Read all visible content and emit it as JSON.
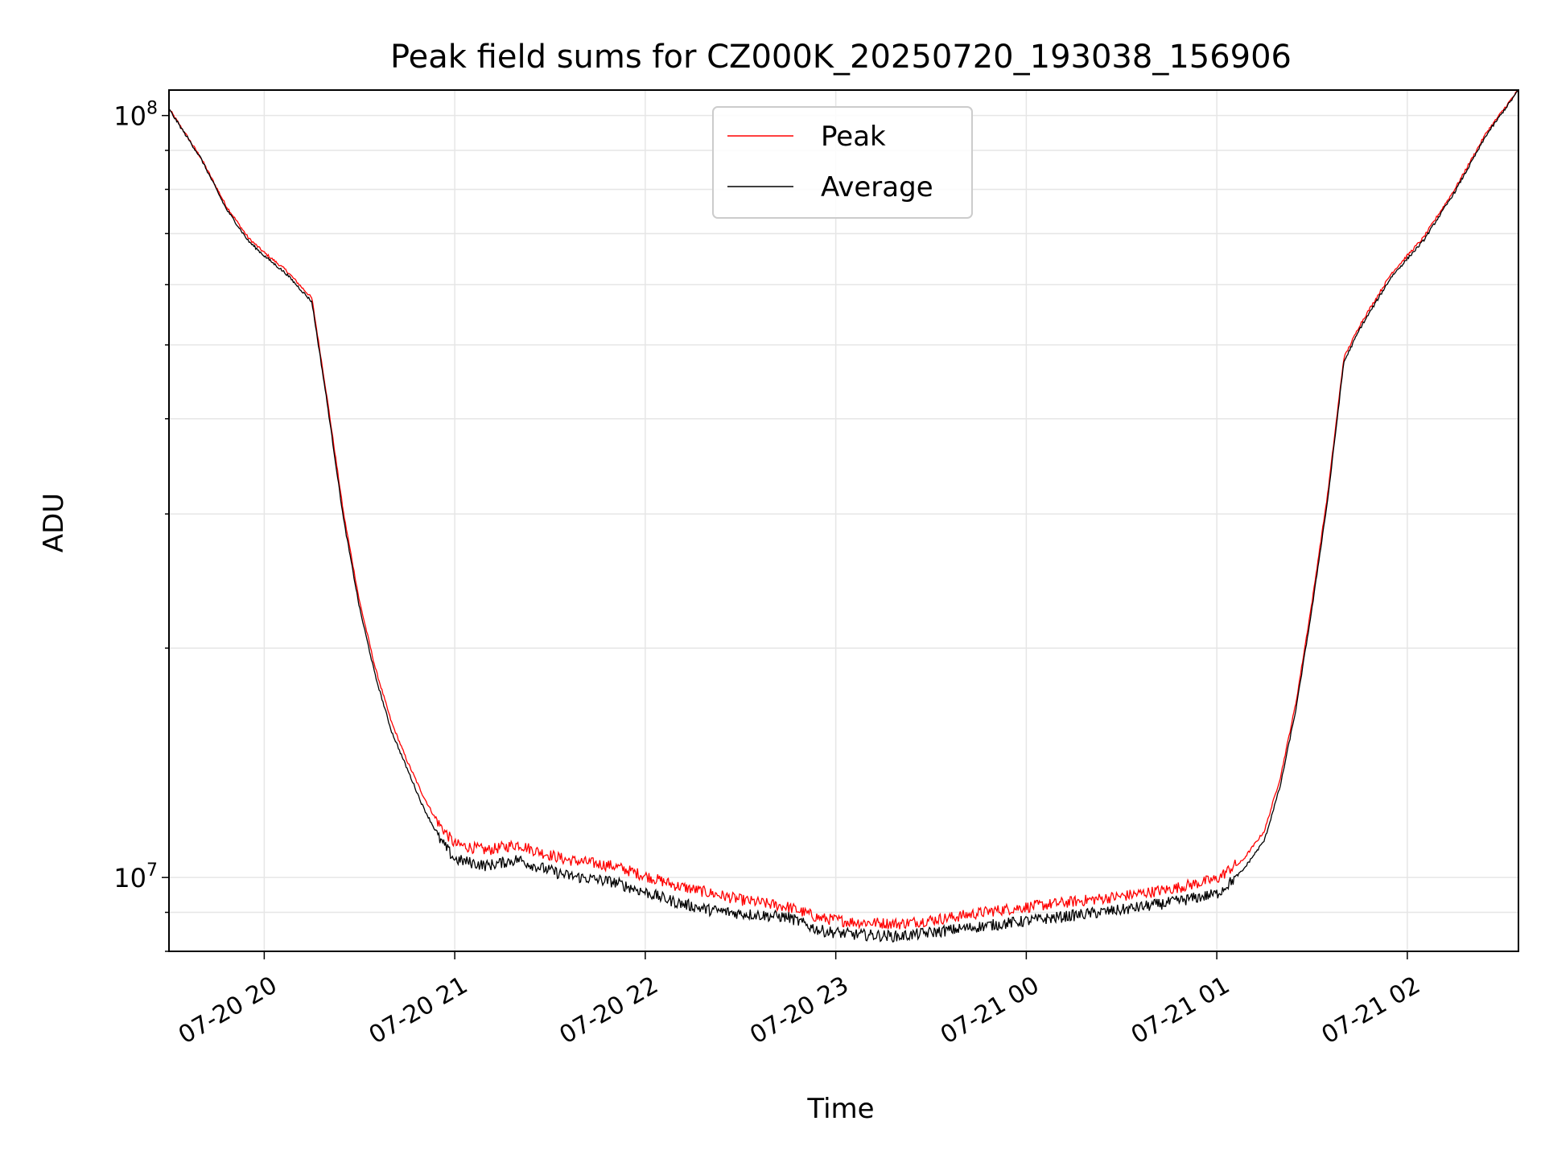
{
  "chart_data": {
    "type": "line",
    "title": "Peak field sums for CZ000K_20250720_193038_156906",
    "xlabel": "Time",
    "ylabel": "ADU",
    "x_axis": "time",
    "x_range": [
      "2025-07-20 19:30",
      "2025-07-21 02:35"
    ],
    "y_scale": "log",
    "ylim": [
      8000000,
      108000000
    ],
    "x_ticks": [
      {
        "t": "2025-07-20 20:00",
        "label": "07-20 20"
      },
      {
        "t": "2025-07-20 21:00",
        "label": "07-20 21"
      },
      {
        "t": "2025-07-20 22:00",
        "label": "07-20 22"
      },
      {
        "t": "2025-07-20 23:00",
        "label": "07-20 23"
      },
      {
        "t": "2025-07-21 00:00",
        "label": "07-21 00"
      },
      {
        "t": "2025-07-21 01:00",
        "label": "07-21 01"
      },
      {
        "t": "2025-07-21 02:00",
        "label": "07-21 02"
      }
    ],
    "y_ticks": [
      {
        "value": 10000000,
        "base": "10",
        "exp": "7"
      },
      {
        "value": 100000000,
        "base": "10",
        "exp": "8"
      }
    ],
    "grid": true,
    "legend_position": "upper center",
    "series": [
      {
        "name": "Peak",
        "color": "#ff0000",
        "points": [
          [
            "2025-07-20 19:30",
            102000000
          ],
          [
            "2025-07-20 19:40",
            88000000
          ],
          [
            "2025-07-20 19:48",
            76000000
          ],
          [
            "2025-07-20 19:55",
            69000000
          ],
          [
            "2025-07-20 20:00",
            66000000
          ],
          [
            "2025-07-20 20:07",
            62500000
          ],
          [
            "2025-07-20 20:15",
            57500000
          ],
          [
            "2025-07-20 20:20",
            42000000
          ],
          [
            "2025-07-20 20:25",
            30000000
          ],
          [
            "2025-07-20 20:30",
            23000000
          ],
          [
            "2025-07-20 20:35",
            18800000
          ],
          [
            "2025-07-20 20:40",
            16000000
          ],
          [
            "2025-07-20 20:45",
            14200000
          ],
          [
            "2025-07-20 20:50",
            12800000
          ],
          [
            "2025-07-20 20:55",
            11700000
          ],
          [
            "2025-07-20 21:00",
            11000000
          ],
          [
            "2025-07-20 21:10",
            10800000
          ],
          [
            "2025-07-20 21:20",
            11000000
          ],
          [
            "2025-07-20 21:25",
            10800000
          ],
          [
            "2025-07-20 21:35",
            10500000
          ],
          [
            "2025-07-20 21:50",
            10300000
          ],
          [
            "2025-07-20 22:00",
            10000000
          ],
          [
            "2025-07-20 22:10",
            9700000
          ],
          [
            "2025-07-20 22:20",
            9500000
          ],
          [
            "2025-07-20 22:30",
            9300000
          ],
          [
            "2025-07-20 22:45",
            9100000
          ],
          [
            "2025-07-20 22:55",
            8800000
          ],
          [
            "2025-07-20 23:05",
            8700000
          ],
          [
            "2025-07-20 23:20",
            8650000
          ],
          [
            "2025-07-20 23:35",
            8800000
          ],
          [
            "2025-07-20 23:50",
            9000000
          ],
          [
            "2025-07-21 00:00",
            9100000
          ],
          [
            "2025-07-21 00:15",
            9250000
          ],
          [
            "2025-07-21 00:30",
            9400000
          ],
          [
            "2025-07-21 00:45",
            9600000
          ],
          [
            "2025-07-21 01:00",
            9900000
          ],
          [
            "2025-07-21 01:08",
            10500000
          ],
          [
            "2025-07-21 01:15",
            11500000
          ],
          [
            "2025-07-21 01:20",
            13500000
          ],
          [
            "2025-07-21 01:25",
            17000000
          ],
          [
            "2025-07-21 01:30",
            23000000
          ],
          [
            "2025-07-21 01:35",
            32000000
          ],
          [
            "2025-07-21 01:40",
            48000000
          ],
          [
            "2025-07-21 01:45",
            53000000
          ],
          [
            "2025-07-21 01:55",
            62000000
          ],
          [
            "2025-07-21 02:05",
            69000000
          ],
          [
            "2025-07-21 02:15",
            80000000
          ],
          [
            "2025-07-21 02:25",
            95000000
          ],
          [
            "2025-07-21 02:35",
            108000000
          ]
        ]
      },
      {
        "name": "Average",
        "color": "#000000",
        "points": [
          [
            "2025-07-20 19:30",
            102000000
          ],
          [
            "2025-07-20 19:40",
            88000000
          ],
          [
            "2025-07-20 19:48",
            75500000
          ],
          [
            "2025-07-20 19:55",
            68500000
          ],
          [
            "2025-07-20 20:00",
            65500000
          ],
          [
            "2025-07-20 20:07",
            62000000
          ],
          [
            "2025-07-20 20:15",
            57000000
          ],
          [
            "2025-07-20 20:20",
            41500000
          ],
          [
            "2025-07-20 20:25",
            29500000
          ],
          [
            "2025-07-20 20:30",
            22600000
          ],
          [
            "2025-07-20 20:35",
            18400000
          ],
          [
            "2025-07-20 20:40",
            15600000
          ],
          [
            "2025-07-20 20:45",
            13900000
          ],
          [
            "2025-07-20 20:50",
            12400000
          ],
          [
            "2025-07-20 20:55",
            11300000
          ],
          [
            "2025-07-20 21:00",
            10600000
          ],
          [
            "2025-07-20 21:10",
            10400000
          ],
          [
            "2025-07-20 21:20",
            10600000
          ],
          [
            "2025-07-20 21:25",
            10400000
          ],
          [
            "2025-07-20 21:35",
            10100000
          ],
          [
            "2025-07-20 21:50",
            9900000
          ],
          [
            "2025-07-20 22:00",
            9600000
          ],
          [
            "2025-07-20 22:10",
            9300000
          ],
          [
            "2025-07-20 22:20",
            9100000
          ],
          [
            "2025-07-20 22:30",
            9000000
          ],
          [
            "2025-07-20 22:45",
            8900000
          ],
          [
            "2025-07-20 22:55",
            8550000
          ],
          [
            "2025-07-20 23:05",
            8450000
          ],
          [
            "2025-07-20 23:20",
            8400000
          ],
          [
            "2025-07-20 23:35",
            8550000
          ],
          [
            "2025-07-20 23:50",
            8700000
          ],
          [
            "2025-07-21 00:00",
            8800000
          ],
          [
            "2025-07-21 00:15",
            8950000
          ],
          [
            "2025-07-21 00:30",
            9100000
          ],
          [
            "2025-07-21 00:45",
            9300000
          ],
          [
            "2025-07-21 01:00",
            9550000
          ],
          [
            "2025-07-21 01:08",
            10200000
          ],
          [
            "2025-07-21 01:15",
            11200000
          ],
          [
            "2025-07-21 01:20",
            13200000
          ],
          [
            "2025-07-21 01:25",
            16700000
          ],
          [
            "2025-07-21 01:30",
            22600000
          ],
          [
            "2025-07-21 01:35",
            31500000
          ],
          [
            "2025-07-21 01:40",
            47500000
          ],
          [
            "2025-07-21 01:45",
            52500000
          ],
          [
            "2025-07-21 01:55",
            61500000
          ],
          [
            "2025-07-21 02:05",
            68500000
          ],
          [
            "2025-07-21 02:15",
            79500000
          ],
          [
            "2025-07-21 02:25",
            94500000
          ],
          [
            "2025-07-21 02:35",
            108000000
          ]
        ]
      }
    ]
  }
}
